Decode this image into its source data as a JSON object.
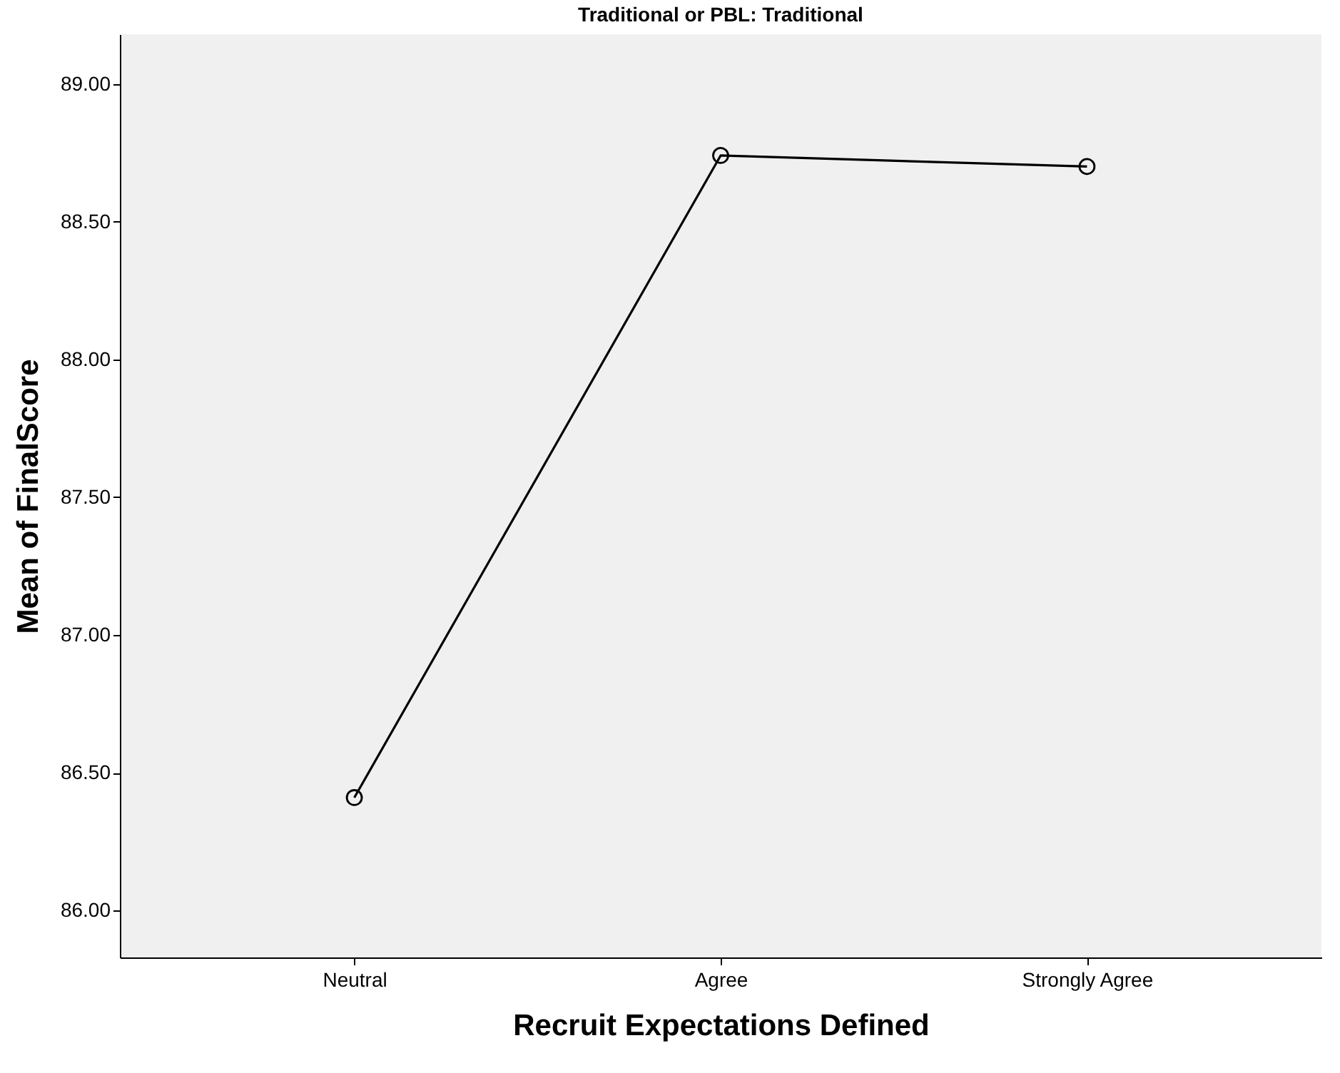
{
  "chart_data": {
    "type": "line",
    "title": "Traditional or PBL: Traditional",
    "xlabel": "Recruit Expectations Defined",
    "ylabel": "Mean of FinalScore",
    "categories": [
      "Neutral",
      "Agree",
      "Strongly Agree"
    ],
    "series": [
      {
        "color": "#000000",
        "values": [
          86.41,
          88.74,
          88.7
        ]
      }
    ],
    "ylim": [
      85.83,
      89.18
    ],
    "yticks": [
      {
        "value": 86,
        "label": "86.00"
      },
      {
        "value": 86.5,
        "label": "86.50"
      },
      {
        "value": 87,
        "label": "87.00"
      },
      {
        "value": 87.5,
        "label": "87.50"
      },
      {
        "value": 88,
        "label": "88.00"
      },
      {
        "value": 88.5,
        "label": "88.50"
      },
      {
        "value": 89,
        "label": "89.00"
      }
    ],
    "marker": "circle",
    "grid": false,
    "legend": false
  }
}
